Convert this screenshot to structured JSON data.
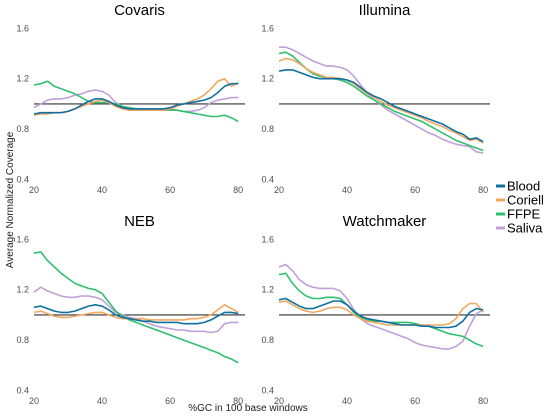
{
  "figure": {
    "xlabel": "%GC in 100 base windows",
    "ylabel": "Average Normalized Coverage"
  },
  "legend": {
    "items": [
      {
        "name": "Blood",
        "color": "#1070a0"
      },
      {
        "name": "Coriell",
        "color": "#f0a860"
      },
      {
        "name": "FFPE",
        "color": "#30c070"
      },
      {
        "name": "Saliva",
        "color": "#c0a0d8"
      }
    ]
  },
  "chart_data": [
    {
      "type": "line",
      "title": "Covaris",
      "xlim": [
        20,
        82
      ],
      "ylim": [
        0.38,
        1.65
      ],
      "xticks": [
        20,
        40,
        60,
        80
      ],
      "yticks": [
        0.4,
        0.8,
        1.2,
        1.6
      ],
      "reference_line": 1.0,
      "x": [
        20,
        22,
        24,
        26,
        28,
        30,
        32,
        34,
        36,
        38,
        40,
        42,
        44,
        46,
        48,
        50,
        52,
        54,
        56,
        58,
        60,
        62,
        64,
        66,
        68,
        70,
        72,
        74,
        76,
        78,
        80
      ],
      "series": [
        {
          "name": "Blood",
          "color": "#1070a0",
          "values": [
            0.92,
            0.93,
            0.93,
            0.93,
            0.93,
            0.94,
            0.96,
            0.99,
            1.02,
            1.04,
            1.04,
            1.02,
            0.99,
            0.97,
            0.96,
            0.96,
            0.96,
            0.96,
            0.96,
            0.96,
            0.97,
            0.99,
            1.0,
            1.01,
            1.02,
            1.03,
            1.05,
            1.09,
            1.14,
            1.16,
            1.16
          ]
        },
        {
          "name": "Coriell",
          "color": "#f0a860",
          "values": [
            0.91,
            0.92,
            0.92,
            0.93,
            0.93,
            0.94,
            0.96,
            0.98,
            1.0,
            1.02,
            1.03,
            1.01,
            0.98,
            0.96,
            0.95,
            0.95,
            0.95,
            0.95,
            0.95,
            0.95,
            0.96,
            0.98,
            1.0,
            1.02,
            1.04,
            1.07,
            1.12,
            1.18,
            1.2,
            1.14,
            1.17
          ]
        },
        {
          "name": "FFPE",
          "color": "#30c070",
          "values": [
            1.15,
            1.16,
            1.18,
            1.14,
            1.12,
            1.1,
            1.08,
            1.05,
            1.02,
            1.01,
            1.01,
            1.01,
            1.0,
            0.98,
            0.97,
            0.96,
            0.95,
            0.95,
            0.95,
            0.95,
            0.95,
            0.95,
            0.94,
            0.93,
            0.92,
            0.91,
            0.9,
            0.9,
            0.91,
            0.89,
            0.86
          ]
        },
        {
          "name": "Saliva",
          "color": "#c0a0d8",
          "values": [
            0.97,
            1.0,
            1.03,
            1.04,
            1.04,
            1.05,
            1.07,
            1.08,
            1.1,
            1.11,
            1.1,
            1.07,
            1.01,
            0.98,
            0.97,
            0.96,
            0.96,
            0.96,
            0.96,
            0.96,
            0.96,
            0.95,
            0.94,
            0.94,
            0.95,
            0.97,
            1.01,
            1.03,
            1.04,
            1.05,
            1.05
          ]
        }
      ]
    },
    {
      "type": "line",
      "title": "Illumina",
      "xlim": [
        20,
        82
      ],
      "ylim": [
        0.38,
        1.65
      ],
      "xticks": [
        20,
        40,
        60,
        80
      ],
      "yticks": [
        0.4,
        0.8,
        1.2,
        1.6
      ],
      "reference_line": 1.0,
      "x": [
        20,
        22,
        24,
        26,
        28,
        30,
        32,
        34,
        36,
        38,
        40,
        42,
        44,
        46,
        48,
        50,
        52,
        54,
        56,
        58,
        60,
        62,
        64,
        66,
        68,
        70,
        72,
        74,
        76,
        78,
        80
      ],
      "series": [
        {
          "name": "Blood",
          "color": "#1070a0",
          "values": [
            1.26,
            1.27,
            1.27,
            1.25,
            1.23,
            1.21,
            1.2,
            1.2,
            1.2,
            1.2,
            1.19,
            1.17,
            1.13,
            1.09,
            1.06,
            1.04,
            1.01,
            0.98,
            0.96,
            0.94,
            0.92,
            0.9,
            0.88,
            0.86,
            0.84,
            0.81,
            0.78,
            0.76,
            0.72,
            0.73,
            0.7
          ]
        },
        {
          "name": "Coriell",
          "color": "#f0a860",
          "values": [
            1.34,
            1.36,
            1.35,
            1.32,
            1.28,
            1.25,
            1.23,
            1.21,
            1.21,
            1.2,
            1.19,
            1.16,
            1.12,
            1.08,
            1.05,
            1.02,
            0.99,
            0.97,
            0.95,
            0.93,
            0.91,
            0.89,
            0.86,
            0.84,
            0.82,
            0.79,
            0.77,
            0.74,
            0.71,
            0.72,
            0.69
          ]
        },
        {
          "name": "FFPE",
          "color": "#30c070",
          "values": [
            1.4,
            1.41,
            1.38,
            1.33,
            1.28,
            1.24,
            1.22,
            1.21,
            1.2,
            1.19,
            1.17,
            1.14,
            1.1,
            1.06,
            1.03,
            1.0,
            0.97,
            0.94,
            0.92,
            0.9,
            0.88,
            0.86,
            0.83,
            0.8,
            0.77,
            0.74,
            0.71,
            0.69,
            0.67,
            0.65,
            0.63
          ]
        },
        {
          "name": "Saliva",
          "color": "#c0a0d8",
          "values": [
            1.45,
            1.45,
            1.43,
            1.4,
            1.37,
            1.34,
            1.32,
            1.3,
            1.3,
            1.29,
            1.27,
            1.22,
            1.15,
            1.08,
            1.03,
            0.99,
            0.95,
            0.92,
            0.89,
            0.86,
            0.83,
            0.8,
            0.77,
            0.75,
            0.72,
            0.7,
            0.68,
            0.67,
            0.66,
            0.62,
            0.61
          ]
        }
      ]
    },
    {
      "type": "line",
      "title": "NEB",
      "xlim": [
        20,
        82
      ],
      "ylim": [
        0.38,
        1.65
      ],
      "xticks": [
        20,
        40,
        60,
        80
      ],
      "yticks": [
        0.4,
        0.8,
        1.2,
        1.6
      ],
      "reference_line": 1.0,
      "x": [
        20,
        22,
        24,
        26,
        28,
        30,
        32,
        34,
        36,
        38,
        40,
        42,
        44,
        46,
        48,
        50,
        52,
        54,
        56,
        58,
        60,
        62,
        64,
        66,
        68,
        70,
        72,
        74,
        76,
        78,
        80
      ],
      "series": [
        {
          "name": "Blood",
          "color": "#1070a0",
          "values": [
            1.06,
            1.07,
            1.05,
            1.03,
            1.02,
            1.02,
            1.03,
            1.05,
            1.07,
            1.08,
            1.07,
            1.04,
            1.0,
            0.98,
            0.97,
            0.96,
            0.95,
            0.95,
            0.94,
            0.94,
            0.94,
            0.94,
            0.93,
            0.93,
            0.93,
            0.94,
            0.96,
            0.99,
            1.02,
            1.02,
            1.01
          ]
        },
        {
          "name": "Coriell",
          "color": "#f0a860",
          "values": [
            1.02,
            1.03,
            1.01,
            0.99,
            0.98,
            0.98,
            0.99,
            1.0,
            1.01,
            1.02,
            1.02,
            1.0,
            0.98,
            0.97,
            0.97,
            0.97,
            0.97,
            0.96,
            0.96,
            0.96,
            0.96,
            0.96,
            0.96,
            0.97,
            0.97,
            0.98,
            1.0,
            1.04,
            1.08,
            1.05,
            1.02
          ]
        },
        {
          "name": "FFPE",
          "color": "#30c070",
          "values": [
            1.49,
            1.5,
            1.43,
            1.38,
            1.33,
            1.29,
            1.25,
            1.23,
            1.21,
            1.2,
            1.17,
            1.1,
            1.03,
            0.99,
            0.96,
            0.94,
            0.92,
            0.9,
            0.88,
            0.86,
            0.84,
            0.82,
            0.8,
            0.78,
            0.76,
            0.74,
            0.72,
            0.7,
            0.67,
            0.65,
            0.62
          ]
        },
        {
          "name": "Saliva",
          "color": "#c0a0d8",
          "values": [
            1.18,
            1.22,
            1.19,
            1.17,
            1.15,
            1.14,
            1.14,
            1.15,
            1.15,
            1.14,
            1.12,
            1.07,
            1.02,
            1.0,
            0.98,
            0.97,
            0.95,
            0.93,
            0.91,
            0.9,
            0.89,
            0.88,
            0.88,
            0.87,
            0.87,
            0.87,
            0.86,
            0.87,
            0.93,
            0.94,
            0.94
          ]
        }
      ]
    },
    {
      "type": "line",
      "title": "Watchmaker",
      "xlim": [
        20,
        82
      ],
      "ylim": [
        0.38,
        1.65
      ],
      "xticks": [
        20,
        40,
        60,
        80
      ],
      "yticks": [
        0.4,
        0.8,
        1.2,
        1.6
      ],
      "reference_line": 1.0,
      "x": [
        20,
        22,
        24,
        26,
        28,
        30,
        32,
        34,
        36,
        38,
        40,
        42,
        44,
        46,
        48,
        50,
        52,
        54,
        56,
        58,
        60,
        62,
        64,
        66,
        68,
        70,
        72,
        74,
        76,
        78,
        80
      ],
      "series": [
        {
          "name": "Blood",
          "color": "#1070a0",
          "values": [
            1.12,
            1.13,
            1.1,
            1.07,
            1.05,
            1.05,
            1.07,
            1.09,
            1.11,
            1.11,
            1.08,
            1.03,
            0.99,
            0.97,
            0.96,
            0.95,
            0.94,
            0.93,
            0.92,
            0.92,
            0.92,
            0.91,
            0.91,
            0.9,
            0.9,
            0.9,
            0.91,
            0.95,
            1.02,
            1.05,
            1.04
          ]
        },
        {
          "name": "Coriell",
          "color": "#f0a860",
          "values": [
            1.1,
            1.11,
            1.08,
            1.05,
            1.03,
            1.02,
            1.03,
            1.05,
            1.06,
            1.06,
            1.04,
            1.0,
            0.97,
            0.95,
            0.94,
            0.93,
            0.92,
            0.92,
            0.92,
            0.92,
            0.92,
            0.92,
            0.92,
            0.92,
            0.92,
            0.93,
            0.97,
            1.05,
            1.09,
            1.09,
            1.02
          ]
        },
        {
          "name": "FFPE",
          "color": "#30c070",
          "values": [
            1.32,
            1.33,
            1.25,
            1.19,
            1.15,
            1.13,
            1.13,
            1.14,
            1.14,
            1.13,
            1.08,
            1.02,
            0.98,
            0.96,
            0.95,
            0.95,
            0.94,
            0.94,
            0.94,
            0.94,
            0.93,
            0.92,
            0.91,
            0.89,
            0.87,
            0.85,
            0.84,
            0.83,
            0.8,
            0.77,
            0.75
          ]
        },
        {
          "name": "Saliva",
          "color": "#c0a0d8",
          "values": [
            1.38,
            1.4,
            1.35,
            1.28,
            1.24,
            1.22,
            1.21,
            1.21,
            1.21,
            1.19,
            1.13,
            1.04,
            0.97,
            0.93,
            0.91,
            0.89,
            0.87,
            0.85,
            0.83,
            0.81,
            0.78,
            0.76,
            0.75,
            0.74,
            0.73,
            0.73,
            0.75,
            0.79,
            0.91,
            1.01,
            1.04
          ]
        }
      ]
    }
  ]
}
